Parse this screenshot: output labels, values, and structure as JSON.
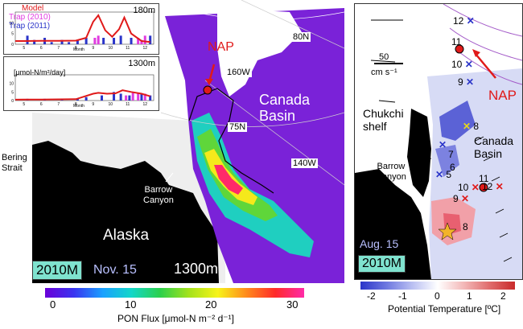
{
  "left_panel": {
    "labels": {
      "nap": "NAP",
      "lat_80": "80N",
      "lon_160": "160W",
      "lat_75": "75N",
      "lon_140": "140W",
      "canada_basin": "Canada\nBasin",
      "bering_strait": "Bering\nStrait",
      "barrow_canyon": "Barrow\nCanyon",
      "alaska": "Alaska",
      "tag": "2010M",
      "date": "Nov. 15",
      "depth": "1300m"
    },
    "inset_top": {
      "depth": "180m",
      "legend": [
        "Model",
        "Trap (2010)",
        "Trap (2011)"
      ],
      "xlabel": "Month",
      "yticks": [
        "0",
        "5",
        "10"
      ],
      "xticks": [
        "5",
        "6",
        "7",
        "8",
        "9",
        "10",
        "11",
        "12"
      ]
    },
    "inset_bottom": {
      "depth": "1300m",
      "unit": "[μmol-N/m²/day]",
      "xlabel": "Month",
      "yticks": [
        "0",
        "5",
        "10"
      ],
      "xticks": [
        "5",
        "6",
        "7",
        "8",
        "9",
        "10",
        "11",
        "12"
      ]
    },
    "colorbar": {
      "ticks": [
        "0",
        "10",
        "20",
        "30"
      ],
      "label": "PON Flux [μmol-N m⁻² d⁻¹]",
      "colors": [
        "#6a00d8",
        "#3a34f0",
        "#1aa0ff",
        "#13d7c9",
        "#2bd04b",
        "#a4e21b",
        "#f7f41a",
        "#ff8a1c",
        "#ff2a2a",
        "#ff2aa8"
      ]
    }
  },
  "right_panel": {
    "labels": {
      "scale_value": "50",
      "scale_unit": "cm s⁻¹",
      "chukchi_shelf": "Chukchi\nshelf",
      "canada_basin": "Canada\nBasin",
      "barrow_canyon": "Barrow\nCanyon",
      "nap": "NAP",
      "date": "Aug. 15",
      "tag": "2010M"
    },
    "markers_blue": [
      "12",
      "11",
      "10",
      "9",
      "8",
      "7",
      "6",
      "5"
    ],
    "markers_red": [
      "12",
      "11",
      "10",
      "9",
      "8"
    ],
    "colorbar": {
      "ticks": [
        "-2",
        "-1",
        "0",
        "1",
        "2"
      ],
      "label": "Potential Temperature [ºC]",
      "colors": [
        "#2b35c9",
        "#6d77e0",
        "#b9bff2",
        "#ffffff",
        "#f3b9b9",
        "#e06d6d",
        "#c92b2b"
      ]
    }
  },
  "chart_data": [
    {
      "type": "line",
      "title": "180m",
      "xlabel": "Month",
      "ylabel": "",
      "ylim": [
        0,
        15
      ],
      "series": [
        {
          "name": "Model",
          "x": [
            4.5,
            5,
            6,
            7,
            8,
            8.6,
            9.0,
            9.3,
            9.7,
            10.1,
            10.5,
            10.8,
            11.2,
            11.8,
            12.3
          ],
          "values": [
            1.5,
            1.5,
            1.6,
            1.6,
            1.7,
            3,
            10.5,
            13.5,
            6.5,
            3.5,
            7,
            12.5,
            5,
            1.5,
            1
          ]
        },
        {
          "name": "Trap (2010)",
          "x": [
            9.1,
            9.3,
            11.6,
            11.8,
            12.0
          ],
          "values": [
            3,
            4,
            3,
            2,
            4
          ]
        },
        {
          "name": "Trap (2011)",
          "x": [
            5.2,
            5.6,
            6.2,
            6.6,
            7.2,
            7.6,
            8.1,
            8.6,
            9.6,
            10.2,
            10.6,
            11.2,
            12.3
          ],
          "values": [
            4,
            2,
            3,
            1,
            2,
            1,
            2,
            3,
            3,
            3,
            4,
            3,
            4
          ]
        }
      ]
    },
    {
      "type": "line",
      "title": "1300m",
      "xlabel": "Month",
      "ylabel": "[μmol-N/m²/day]",
      "ylim": [
        0,
        15
      ],
      "series": [
        {
          "name": "Model",
          "x": [
            4.5,
            5,
            6,
            7,
            8,
            9.0,
            9.3,
            9.8,
            10.3,
            10.7,
            11.2,
            11.8,
            12.3
          ],
          "values": [
            0.5,
            0.6,
            0.6,
            0.7,
            0.8,
            4,
            4.5,
            4,
            4.2,
            6,
            5,
            4,
            2.5
          ]
        },
        {
          "name": "Trap (2010)",
          "x": [
            10.9,
            11.3,
            11.6,
            12.0
          ],
          "values": [
            3,
            5,
            4,
            4
          ]
        },
        {
          "name": "Trap (2011)",
          "x": [
            5.2,
            6.2,
            7.2,
            8.1,
            8.6,
            9.5,
            10.2,
            10.6,
            11.1,
            11.8,
            12.3
          ],
          "values": [
            1,
            1,
            1,
            1,
            2,
            3,
            5,
            4,
            3,
            4,
            3
          ]
        }
      ]
    }
  ]
}
